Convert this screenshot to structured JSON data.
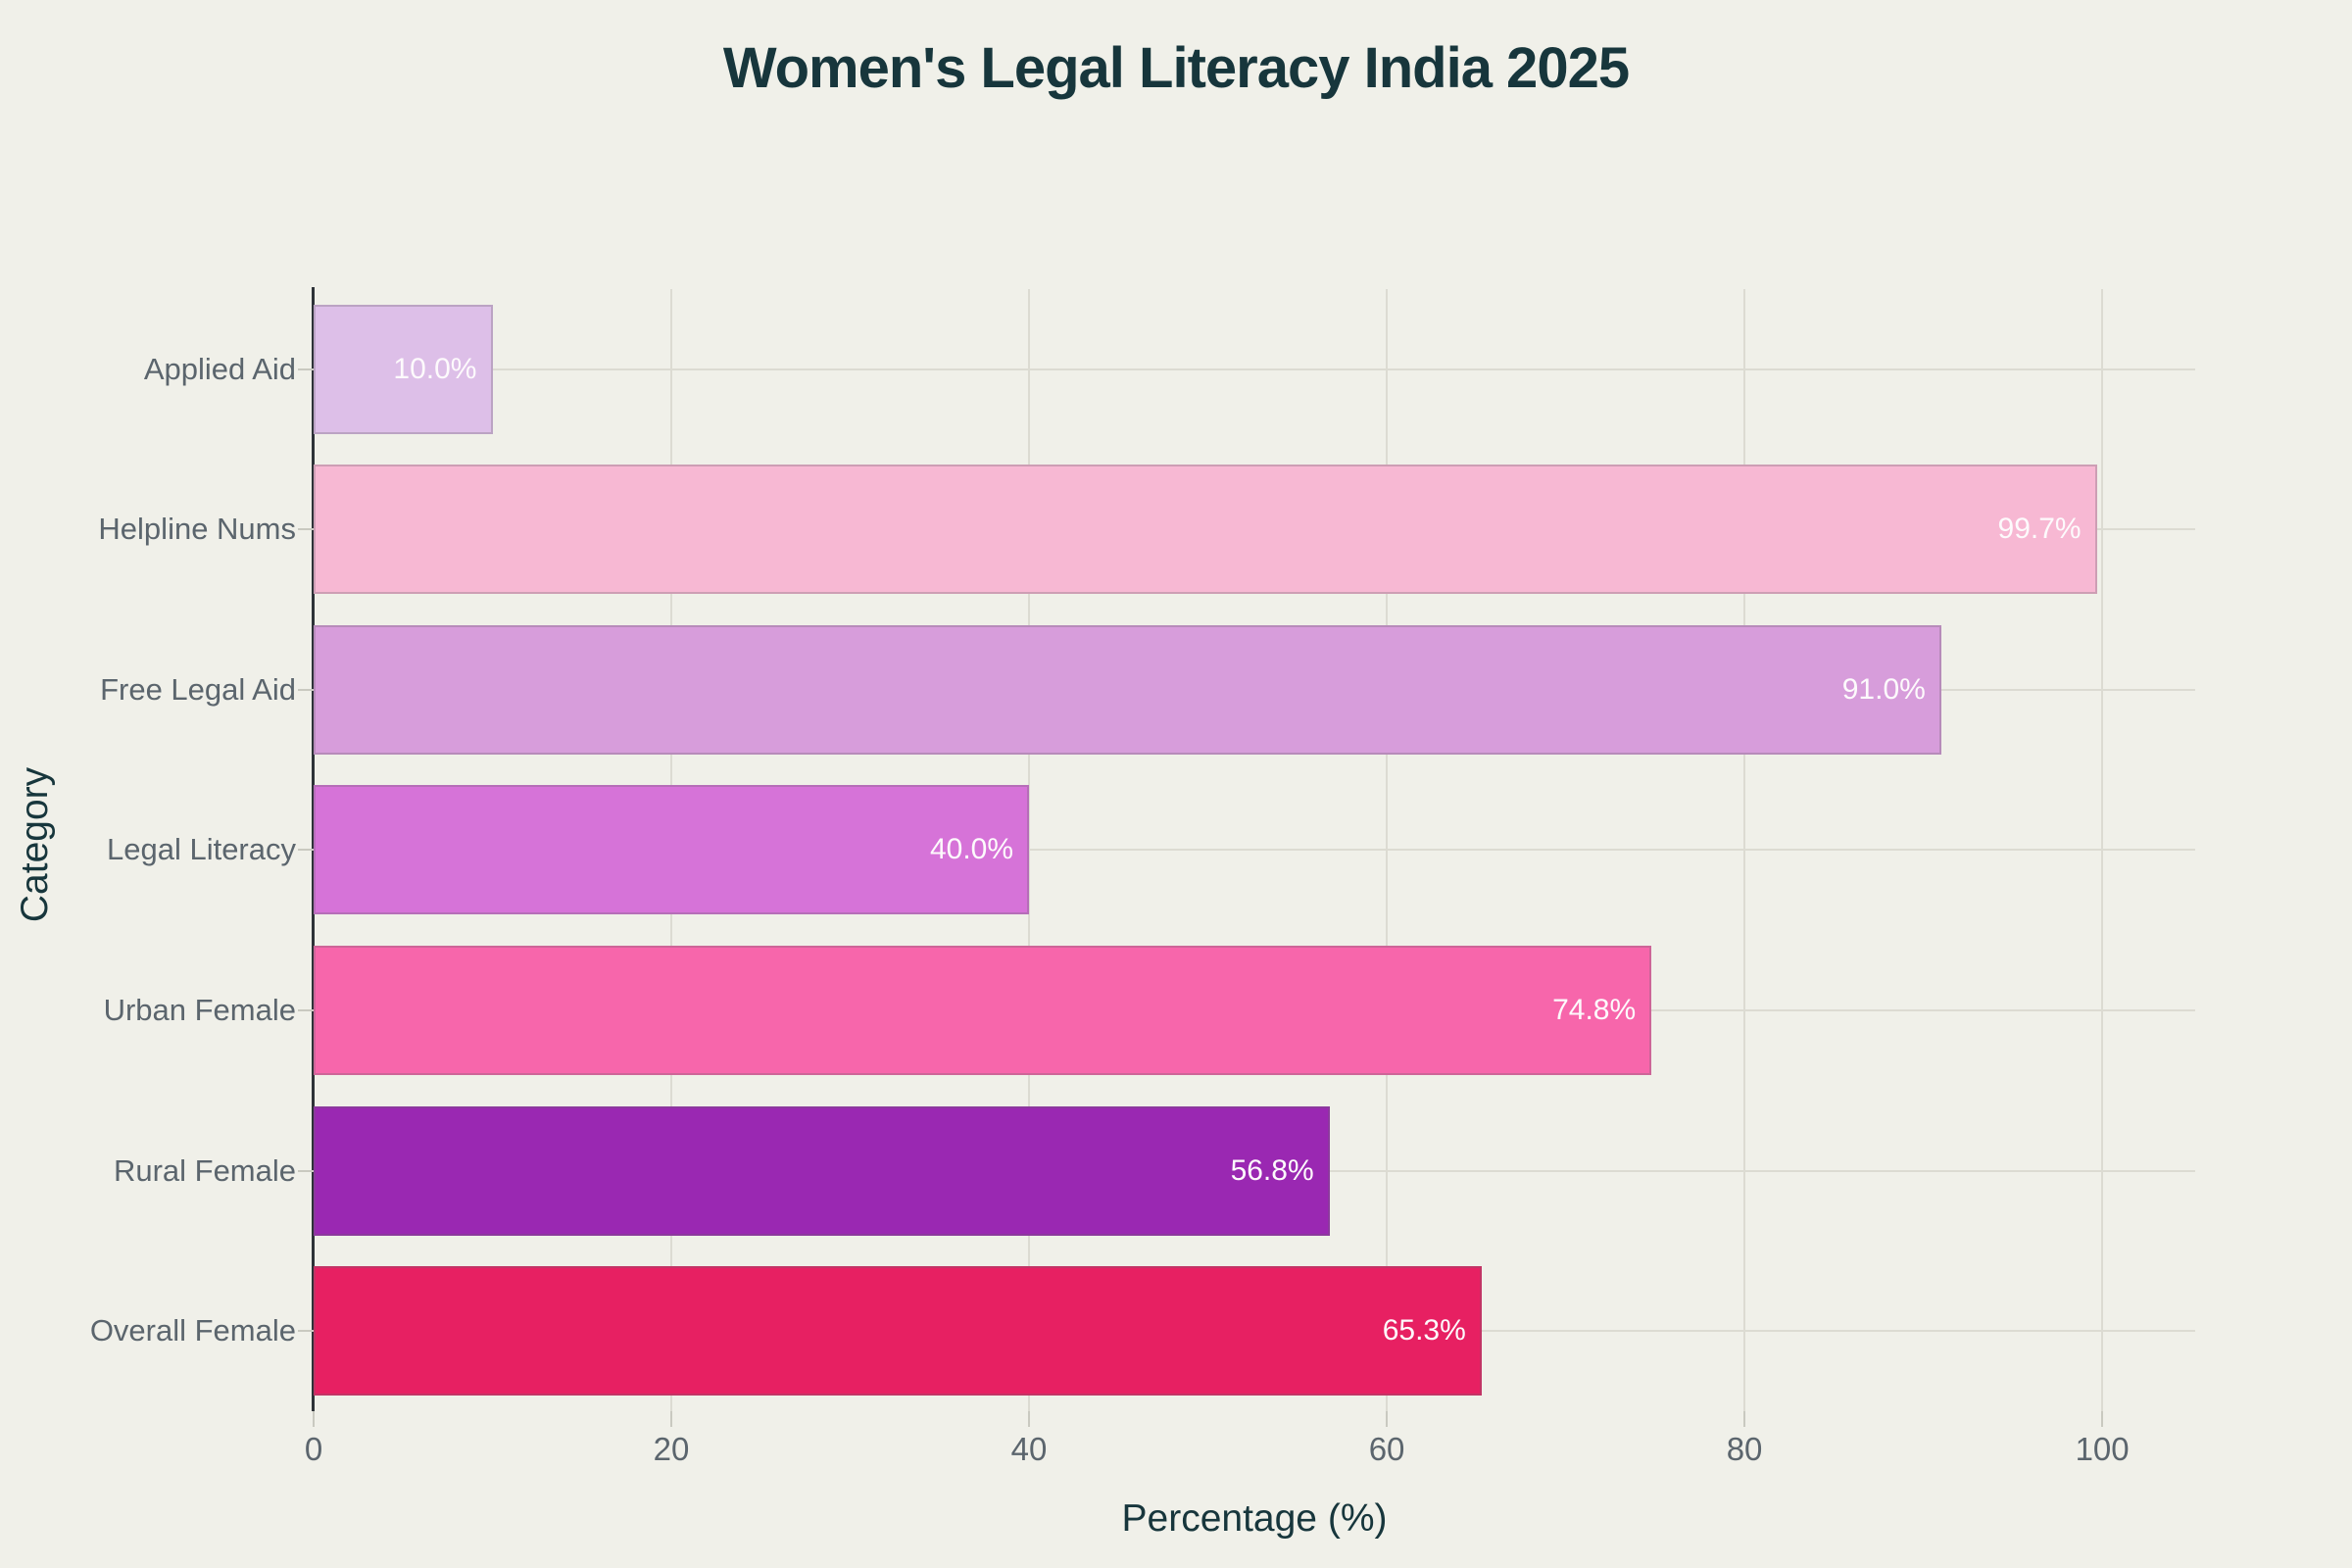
{
  "chart_data": {
    "type": "bar",
    "orientation": "horizontal",
    "title": "Women's Legal Literacy India 2025",
    "xlabel": "Percentage (%)",
    "ylabel": "Category",
    "categories": [
      "Applied Aid",
      "Helpline Nums",
      "Free Legal Aid",
      "Legal Literacy",
      "Urban Female",
      "Rural Female",
      "Overall Female"
    ],
    "values": [
      10.0,
      99.7,
      91.0,
      40.0,
      74.8,
      56.8,
      65.3
    ],
    "bar_labels": [
      "10.0%",
      "99.7%",
      "91.0%",
      "40.0%",
      "74.8%",
      "56.8%",
      "65.3%"
    ],
    "bar_colors": [
      "#ddbfe8",
      "#f7b8d3",
      "#d79ddb",
      "#d673d8",
      "#f766ab",
      "#9a28b2",
      "#e72062"
    ],
    "xticks": [
      0,
      20,
      40,
      60,
      80,
      100
    ],
    "xlim": [
      0,
      105.2
    ],
    "grid": true,
    "legend": false,
    "background_color": "#f0f0e9",
    "title_color": "#17363c",
    "tick_label_color": "#5b656d",
    "value_label_color": "#fdfafc"
  }
}
